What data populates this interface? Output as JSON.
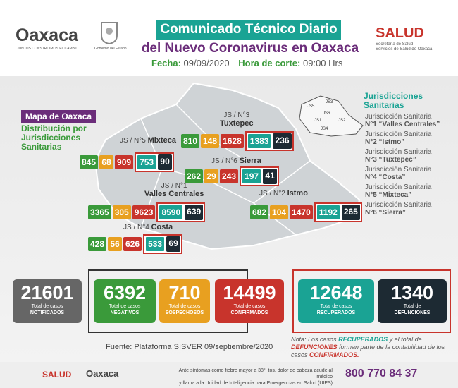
{
  "header": {
    "logo": "Oaxaca",
    "logo_tagline": "JUNTOS CONSTRUIMOS EL CAMBIO",
    "gov_label": "Gobierno del Estado",
    "title": "Comunicado Técnico Diario",
    "subtitle": "del Nuevo Coronavirus en Oaxaca",
    "date_label": "Fecha:",
    "date": "09/09/2020",
    "time_label": "Hora de corte:",
    "time": "09:00 Hrs",
    "salud": "SALUD",
    "salud_line1": "Secretaría de Salud",
    "salud_line2": "Servicios de Salud de Oaxaca"
  },
  "map_panel": {
    "tag": "Mapa de Oaxaca",
    "heading": "Distribución por Jurisdicciones Sanitarias",
    "regions": [
      {
        "code": "JS / N°5",
        "name": "Mixteca",
        "values": [
          845,
          68,
          909,
          753,
          90
        ]
      },
      {
        "code": "JS / N°3",
        "name": "Tuxtepec",
        "values": [
          810,
          148,
          1628,
          1383,
          236
        ]
      },
      {
        "code": "JS / N°6",
        "name": "Sierra",
        "values": [
          262,
          29,
          243,
          197,
          41
        ]
      },
      {
        "code": "JS / N°1",
        "name": "Valles Centrales",
        "values": [
          3365,
          305,
          9623,
          8590,
          639
        ]
      },
      {
        "code": "JS / N°2",
        "name": "Istmo",
        "values": [
          682,
          104,
          1470,
          1192,
          265
        ]
      },
      {
        "code": "JS / N°4",
        "name": "Costa",
        "values": [
          428,
          56,
          626,
          533,
          69
        ]
      }
    ],
    "inset_labels": [
      "JS5",
      "JS3",
      "JS6",
      "JS1",
      "JS2",
      "JS4"
    ]
  },
  "legend": {
    "title": "Jurisdicciones Sanitarias",
    "items": [
      {
        "line1": "Jurisdicción Sanitaria",
        "line2": "N°1 “Valles Centrales”"
      },
      {
        "line1": "Jurisdicción Sanitaria",
        "line2": "N°2 “Istmo”"
      },
      {
        "line1": "Jurisdicción Sanitaria",
        "line2": "N°3 “Tuxtepec”"
      },
      {
        "line1": "Jurisdicción Sanitaria",
        "line2": "N°4 “Costa”"
      },
      {
        "line1": "Jurisdicción Sanitaria",
        "line2": "N°5 “Mixteca”"
      },
      {
        "line1": "Jurisdicción Sanitaria",
        "line2": "N°6 “Sierra”"
      }
    ]
  },
  "totals": [
    {
      "value": 21601,
      "label": "Total de casos",
      "kind": "NOTIFICADOS"
    },
    {
      "value": 6392,
      "label": "Total de casos",
      "kind": "NEGATIVOS"
    },
    {
      "value": 710,
      "label": "Total de casos",
      "kind": "SOSPECHOSOS"
    },
    {
      "value": 14499,
      "label": "Total de casos",
      "kind": "CONFIRMADOS"
    },
    {
      "value": 12648,
      "label": "Total de casos",
      "kind": "RECUPERADOS"
    },
    {
      "value": 1340,
      "label": "Total de",
      "kind": "DEFUNCIONES"
    }
  ],
  "source": "Fuente: Plataforma SISVER 09/septiembre/2020",
  "note": {
    "label": "Nota:",
    "parts": [
      "Los casos",
      "RECUPERADOS",
      "y el total de",
      "DEFUNCIONES",
      "forman parte de la contabilidad de los casos",
      "CONFIRMADOS."
    ]
  },
  "footer": {
    "salud": "SALUD",
    "oaxaca": "Oaxaca",
    "message_line1": "Ante síntomas como fiebre mayor a 38°, tos, dolor de cabeza acude al médico",
    "message_line2": "y llama a la Unidad de Inteligencia para Emergencias en Salud (UIES)",
    "phone": "800 770 84 37"
  }
}
